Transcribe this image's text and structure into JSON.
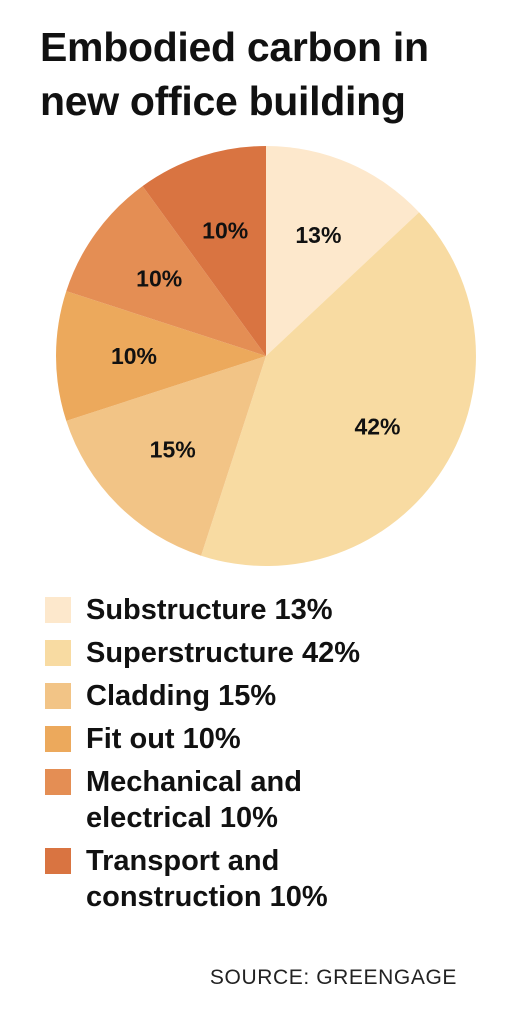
{
  "title_lines": [
    "Embodied carbon in",
    "new office building"
  ],
  "source": "SOURCE: GREENGAGE",
  "chart_data": {
    "type": "pie",
    "title": "Embodied carbon in new office building",
    "unit": "%",
    "slices": [
      {
        "label": "Substructure",
        "value": 13,
        "display": "13%",
        "color": "#fde8cc",
        "legend_lines": [
          "Substructure 13%"
        ]
      },
      {
        "label": "Superstructure",
        "value": 42,
        "display": "42%",
        "color": "#f8dba2",
        "legend_lines": [
          "Superstructure 42%"
        ]
      },
      {
        "label": "Cladding",
        "value": 15,
        "display": "15%",
        "color": "#f2c486",
        "legend_lines": [
          "Cladding 15%"
        ]
      },
      {
        "label": "Fit out",
        "value": 10,
        "display": "10%",
        "color": "#eca95c",
        "legend_lines": [
          "Fit out 10%"
        ]
      },
      {
        "label": "Mechanical and electrical",
        "value": 10,
        "display": "10%",
        "color": "#e48e54",
        "legend_lines": [
          "Mechanical and",
          "electrical 10%"
        ]
      },
      {
        "label": "Transport and construction",
        "value": 10,
        "display": "10%",
        "color": "#d97441",
        "legend_lines": [
          "Transport and",
          "construction 10%"
        ]
      }
    ],
    "start": "12 o'clock",
    "direction": "clockwise",
    "legend_placement": "bottom"
  }
}
